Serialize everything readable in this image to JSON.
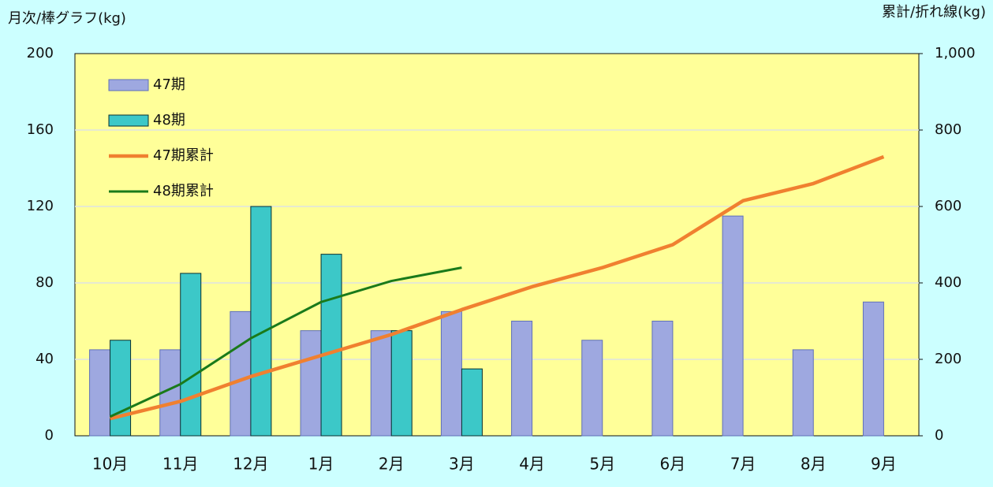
{
  "chart_data": {
    "type": "bar",
    "y_label": "月次/棒グラフ(kg)",
    "y2_label": "累計/折れ線(kg)",
    "categories": [
      "10月",
      "11月",
      "12月",
      "1月",
      "2月",
      "3月",
      "4月",
      "5月",
      "6月",
      "7月",
      "8月",
      "9月"
    ],
    "series": [
      {
        "name": "47期",
        "type": "bar",
        "color": "#9ea8e0",
        "values": [
          45,
          45,
          65,
          55,
          55,
          65,
          60,
          50,
          60,
          115,
          45,
          70
        ]
      },
      {
        "name": "48期",
        "type": "bar",
        "color": "#3cc8c8",
        "values": [
          50,
          85,
          120,
          95,
          55,
          35,
          null,
          null,
          null,
          null,
          null,
          null
        ]
      },
      {
        "name": "47期累計",
        "type": "line",
        "axis": "y2",
        "color": "#f08030",
        "values": [
          45,
          90,
          155,
          210,
          265,
          330,
          390,
          440,
          500,
          615,
          660,
          730
        ]
      },
      {
        "name": "48期累計",
        "type": "line",
        "axis": "y2",
        "color": "#1a7a1a",
        "values": [
          50,
          135,
          255,
          350,
          405,
          440,
          null,
          null,
          null,
          null,
          null,
          null
        ]
      }
    ],
    "ylim": [
      0,
      200
    ],
    "yticks": [
      0,
      40,
      80,
      120,
      160,
      200
    ],
    "y2lim": [
      0,
      1000
    ],
    "y2ticks": [
      0,
      200,
      400,
      600,
      800,
      {
        "value": 1000,
        "label": "1,000"
      }
    ],
    "grid": true,
    "legend": "top-left"
  }
}
